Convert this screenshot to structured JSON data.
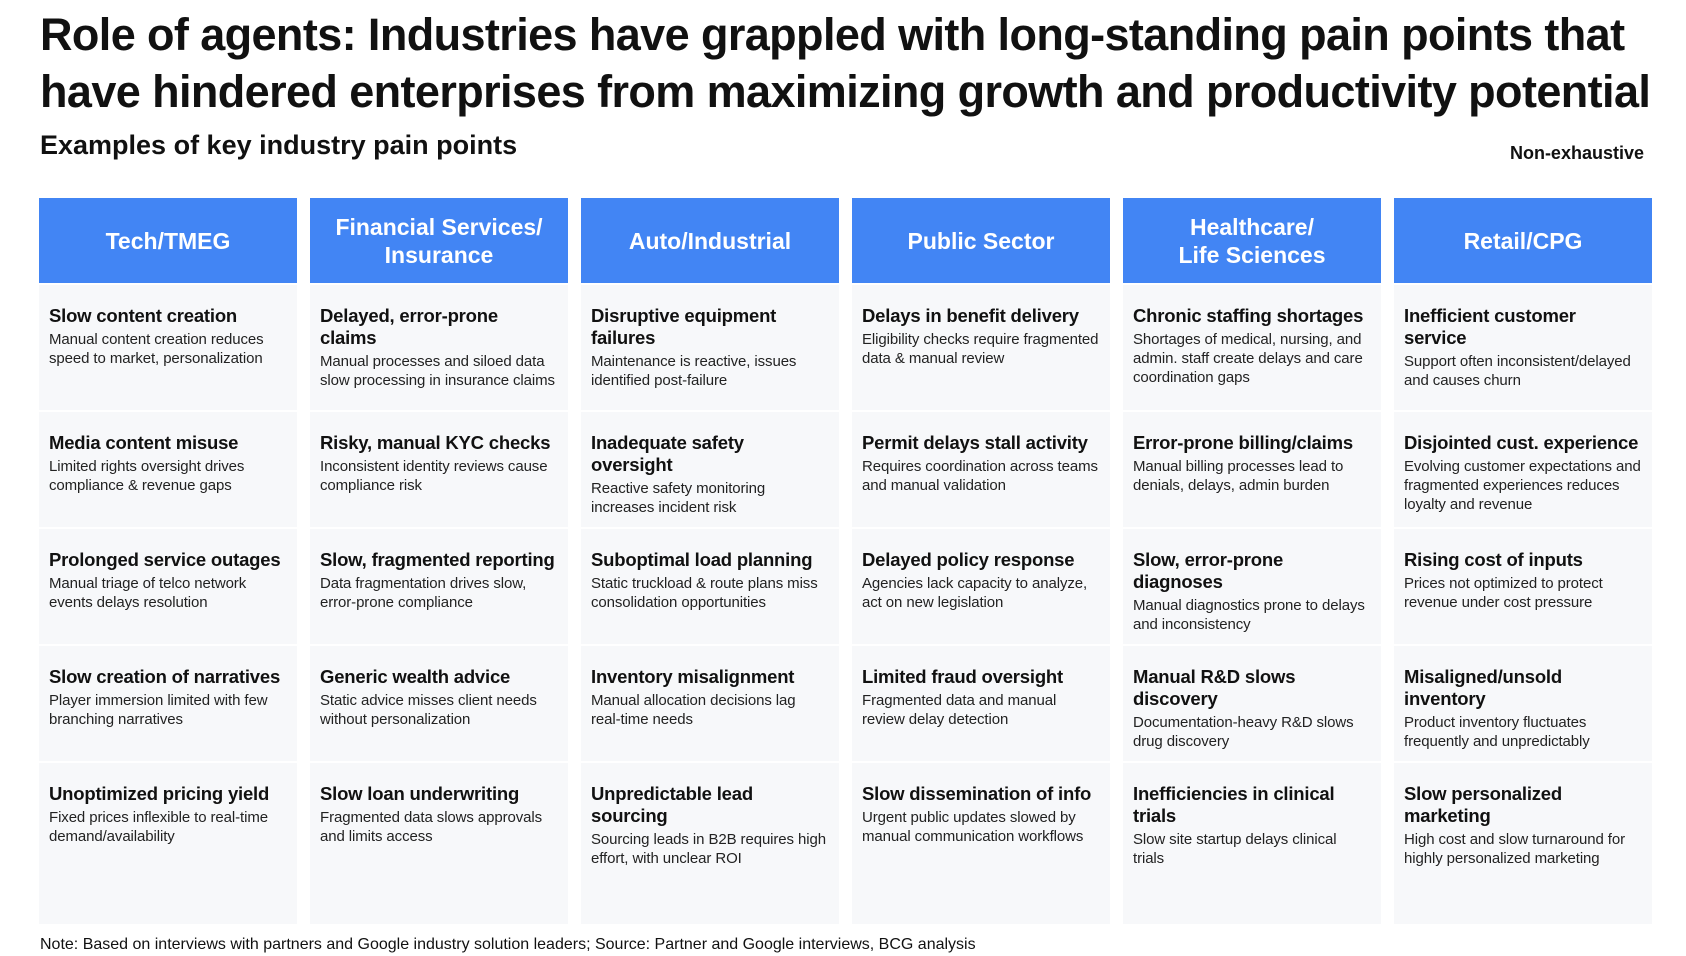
{
  "title": "Role of agents: Industries have grappled with long-standing pain points that have hindered enterprises from maximizing growth and productivity potential",
  "subtitle": "Examples of key industry pain points",
  "tag": "Non-exhaustive",
  "accent_color": "#4285f4",
  "columns": [
    {
      "header": "Tech/TMEG",
      "cells": [
        {
          "title": "Slow content creation",
          "desc": "Manual content creation reduces speed to market, personalization"
        },
        {
          "title": "Media content misuse",
          "desc": "Limited rights oversight drives compliance & revenue gaps"
        },
        {
          "title": "Prolonged service outages",
          "desc": "Manual triage of telco network events delays resolution"
        },
        {
          "title": "Slow creation of narratives",
          "desc": "Player immersion limited with few branching narratives"
        },
        {
          "title": "Unoptimized pricing yield",
          "desc": "Fixed prices inflexible to real-time demand/availability"
        }
      ]
    },
    {
      "header": "Financial Services/\nInsurance",
      "cells": [
        {
          "title": "Delayed, error-prone claims",
          "desc": "Manual processes and siloed data slow processing in insurance claims"
        },
        {
          "title": "Risky, manual KYC checks",
          "desc": "Inconsistent identity reviews cause compliance risk"
        },
        {
          "title": "Slow, fragmented reporting",
          "desc": "Data fragmentation drives slow, error-prone compliance"
        },
        {
          "title": "Generic wealth advice",
          "desc": "Static advice misses client needs without personalization"
        },
        {
          "title": "Slow loan underwriting",
          "desc": "Fragmented data slows approvals and limits access"
        }
      ]
    },
    {
      "header": "Auto/Industrial",
      "cells": [
        {
          "title": "Disruptive equipment failures",
          "desc": "Maintenance is reactive, issues identified post-failure"
        },
        {
          "title": "Inadequate safety oversight",
          "desc": "Reactive safety monitoring increases incident risk"
        },
        {
          "title": "Suboptimal load planning",
          "desc": "Static truckload & route plans miss consolidation opportunities"
        },
        {
          "title": "Inventory misalignment",
          "desc": "Manual allocation decisions lag real-time needs"
        },
        {
          "title": "Unpredictable lead sourcing",
          "desc": "Sourcing leads in B2B requires high effort, with unclear ROI"
        }
      ]
    },
    {
      "header": "Public Sector",
      "cells": [
        {
          "title": "Delays in benefit delivery",
          "desc": "Eligibility checks require fragmented data & manual review"
        },
        {
          "title": "Permit delays stall activity",
          "desc": "Requires coordination across teams and manual validation"
        },
        {
          "title": "Delayed policy response",
          "desc": "Agencies lack capacity to analyze, act on new legislation"
        },
        {
          "title": "Limited fraud oversight",
          "desc": "Fragmented data and manual review delay detection"
        },
        {
          "title": "Slow dissemination of info",
          "desc": "Urgent public updates slowed by manual communication workflows"
        }
      ]
    },
    {
      "header": "Healthcare/\nLife Sciences",
      "cells": [
        {
          "title": "Chronic staffing shortages",
          "desc": "Shortages of medical, nursing, and admin. staff create delays and care coordination gaps"
        },
        {
          "title": "Error-prone billing/claims",
          "desc": "Manual billing processes lead to denials, delays, admin burden"
        },
        {
          "title": "Slow, error-prone diagnoses",
          "desc": "Manual diagnostics prone to delays and inconsistency"
        },
        {
          "title": "Manual R&D slows discovery",
          "desc": "Documentation-heavy R&D slows drug discovery"
        },
        {
          "title": "Inefficiencies in clinical trials",
          "desc": "Slow site startup delays clinical trials"
        }
      ]
    },
    {
      "header": "Retail/CPG",
      "cells": [
        {
          "title": "Inefficient customer service",
          "desc": "Support often inconsistent/delayed and causes churn"
        },
        {
          "title": "Disjointed cust. experience",
          "desc": "Evolving customer expectations and fragmented experiences reduces loyalty and revenue"
        },
        {
          "title": "Rising cost of inputs",
          "desc": "Prices not optimized to protect revenue under cost pressure"
        },
        {
          "title": "Misaligned/unsold inventory",
          "desc": "Product inventory fluctuates frequently and unpredictably"
        },
        {
          "title": "Slow personalized marketing",
          "desc": "High cost and slow turnaround for highly personalized marketing"
        }
      ]
    }
  ],
  "note": "Note: Based on interviews with partners and Google industry solution leaders; Source: Partner and Google interviews, BCG analysis"
}
